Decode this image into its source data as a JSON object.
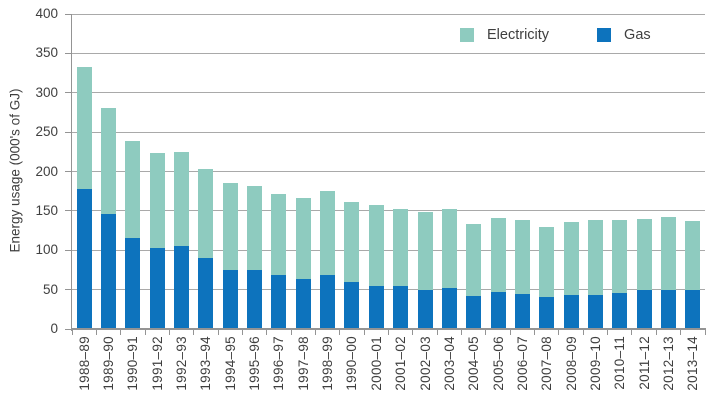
{
  "chart_data": {
    "type": "bar",
    "stacked": true,
    "title": "",
    "xlabel": "",
    "ylabel": "Energy usage (000's of GJ)",
    "ylim": [
      0,
      400
    ],
    "yticks": [
      0,
      50,
      100,
      150,
      200,
      250,
      300,
      350,
      400
    ],
    "grid": "horizontal",
    "legend": [
      "Electricity",
      "Gas"
    ],
    "legend_position": "top-right inside plot",
    "categories": [
      "1988–89",
      "1989–90",
      "1990–91",
      "1991–92",
      "1992–93",
      "1993–94",
      "1994–95",
      "1995–96",
      "1996–97",
      "1997–98",
      "1998–99",
      "1990–00",
      "2000–01",
      "2001–02",
      "2002–03",
      "2003–04",
      "2004–05",
      "2005–06",
      "2006–07",
      "2007–08",
      "2008–09",
      "2009–10",
      "2010–11",
      "2011–12",
      "2012–13",
      "2013–14"
    ],
    "series": [
      {
        "name": "Gas",
        "color": "#0d73bd",
        "values": [
          178,
          146,
          115,
          103,
          106,
          90,
          75,
          75,
          68,
          64,
          69,
          60,
          55,
          55,
          50,
          52,
          42,
          47,
          45,
          41,
          43,
          43,
          46,
          49,
          50,
          49
        ]
      },
      {
        "name": "Electricity",
        "color": "#8ecbbf",
        "values": [
          155,
          135,
          124,
          120,
          119,
          113,
          110,
          106,
          104,
          103,
          106,
          101,
          102,
          98,
          98,
          100,
          92,
          94,
          93,
          88,
          93,
          96,
          93,
          91,
          92,
          88
        ]
      }
    ],
    "totals": [
      333,
      281,
      239,
      223,
      225,
      203,
      185,
      181,
      172,
      167,
      175,
      161,
      157,
      153,
      148,
      152,
      134,
      141,
      138,
      129,
      136,
      139,
      139,
      140,
      142,
      137
    ],
    "colors": {
      "gas": "#0d73bd",
      "electricity": "#8ecbbf",
      "gridline": "#a9a9a9",
      "axis": "#949494",
      "text": "#3f3f3f",
      "background": "#ffffff"
    }
  }
}
